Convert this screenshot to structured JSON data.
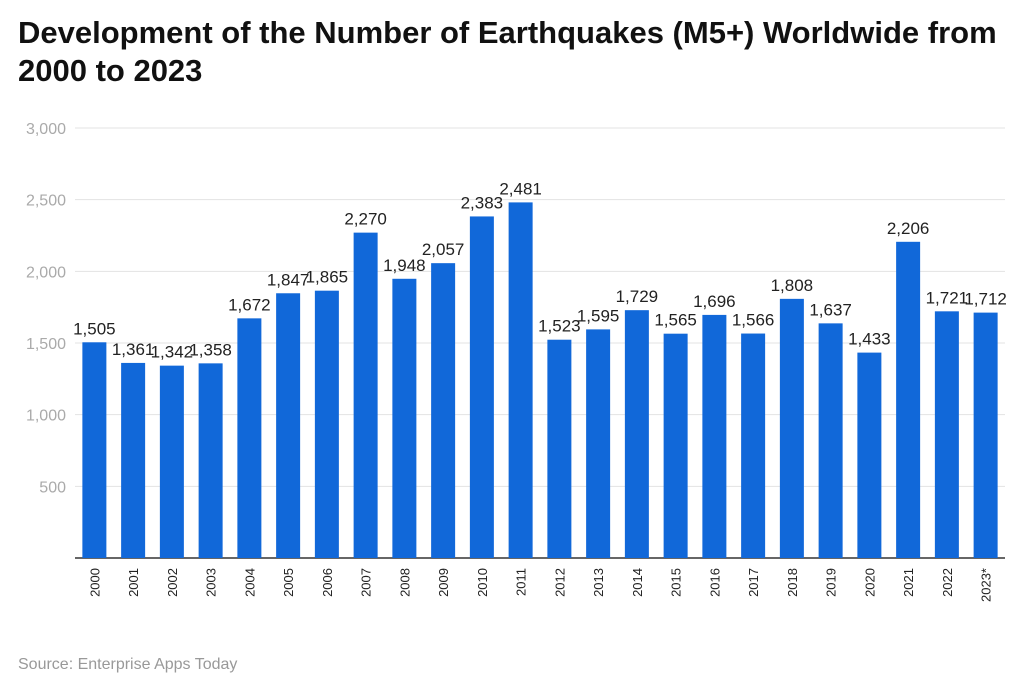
{
  "chart_data": {
    "type": "bar",
    "title": "Development of the Number of Earthquakes (M5+) Worldwide from 2000 to 2023",
    "xlabel": "",
    "ylabel": "",
    "ylim": [
      0,
      3000
    ],
    "yticks": [
      "500",
      "1,000",
      "1,500",
      "2,000",
      "2,500",
      "3,000"
    ],
    "grid": true,
    "bar_color": "#1168D9",
    "categories": [
      "2000",
      "2001",
      "2002",
      "2003",
      "2004",
      "2005",
      "2006",
      "2007",
      "2008",
      "2009",
      "2010",
      "2011",
      "2012",
      "2013",
      "2014",
      "2015",
      "2016",
      "2017",
      "2018",
      "2019",
      "2020",
      "2021",
      "2022",
      "2023*"
    ],
    "values": [
      1505,
      1361,
      1342,
      1358,
      1672,
      1847,
      1865,
      2270,
      1948,
      2057,
      2383,
      2481,
      1523,
      1595,
      1729,
      1565,
      1696,
      1566,
      1808,
      1637,
      1433,
      2206,
      1721,
      1712
    ],
    "labels": [
      "1,505",
      "1,361",
      "1,342",
      "1,358",
      "1,672",
      "1,847",
      "1,865",
      "2,270",
      "1,948",
      "2,057",
      "2,383",
      "2,481",
      "1,523",
      "1,595",
      "1,729",
      "1,565",
      "1,696",
      "1,566",
      "1,808",
      "1,637",
      "1,433",
      "2,206",
      "1,721",
      "1,712"
    ]
  },
  "source": "Source: Enterprise Apps Today"
}
